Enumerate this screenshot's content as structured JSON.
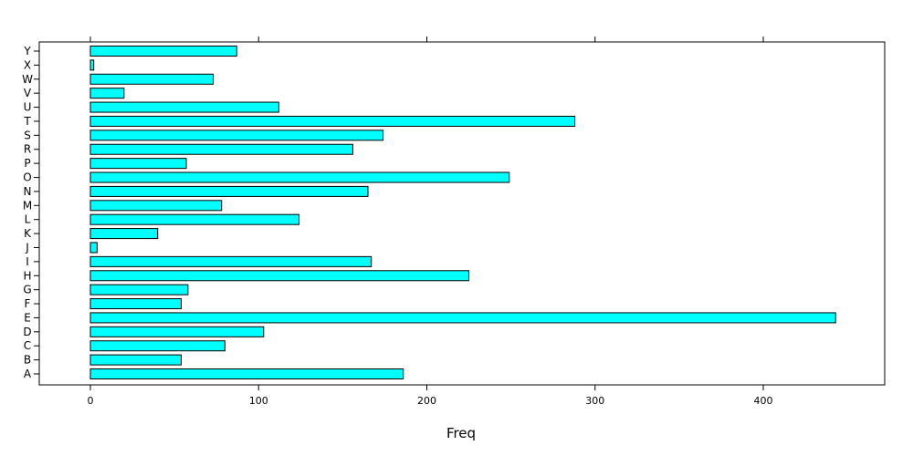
{
  "chart_data": {
    "type": "bar",
    "orientation": "horizontal",
    "categories": [
      "A",
      "B",
      "C",
      "D",
      "E",
      "F",
      "G",
      "H",
      "I",
      "J",
      "K",
      "L",
      "M",
      "N",
      "O",
      "P",
      "R",
      "S",
      "T",
      "U",
      "V",
      "W",
      "X",
      "Y"
    ],
    "values": [
      186,
      54,
      80,
      103,
      443,
      54,
      58,
      225,
      167,
      4,
      40,
      124,
      78,
      165,
      249,
      57,
      156,
      174,
      288,
      112,
      20,
      73,
      2,
      87
    ],
    "xlabel": "Freq",
    "ylabel": "",
    "xlim": [
      -30,
      472
    ],
    "xticks": [
      0,
      100,
      200,
      300,
      400
    ],
    "grid": false,
    "colors": {
      "bar_fill": "#00FFFF",
      "bar_stroke": "#000000",
      "frame": "#000000"
    }
  }
}
